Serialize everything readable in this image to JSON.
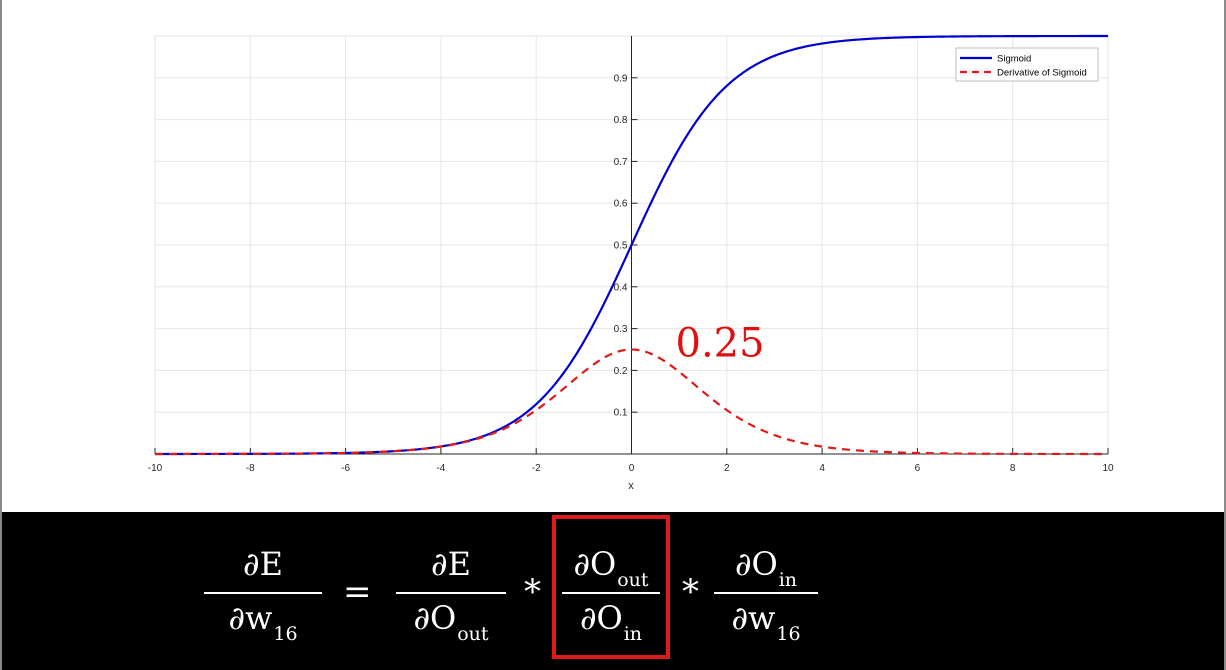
{
  "chart_data": {
    "type": "line",
    "xlabel": "x",
    "ylabel": "",
    "xlim": [
      -10,
      10
    ],
    "ylim": [
      0,
      1
    ],
    "x_ticks": [
      -10,
      -8,
      -6,
      -4,
      -2,
      0,
      2,
      4,
      6,
      8,
      10
    ],
    "y_ticks": [
      0.1,
      0.2,
      0.3,
      0.4,
      0.5,
      0.6,
      0.7,
      0.8,
      0.9
    ],
    "grid": true,
    "axis_location": "origin",
    "legend_position": "top-right",
    "series": [
      {
        "name": "Sigmoid",
        "function": "1/(1+exp(-x))",
        "color": "#0000d0",
        "style": "solid",
        "x": [
          -10,
          -6,
          -4,
          -3,
          -2,
          -1,
          0,
          1,
          2,
          3,
          4,
          6,
          10
        ],
        "values": [
          5e-05,
          0.0025,
          0.018,
          0.047,
          0.119,
          0.269,
          0.5,
          0.731,
          0.881,
          0.953,
          0.982,
          0.9975,
          0.99995
        ]
      },
      {
        "name": "Derivative of Sigmoid",
        "function": "s(x)*(1-s(x))",
        "color": "#e01a1a",
        "style": "dashed",
        "x": [
          -10,
          -6,
          -4,
          -3,
          -2,
          -1,
          0,
          1,
          2,
          3,
          4,
          6,
          10
        ],
        "values": [
          5e-05,
          0.0025,
          0.0177,
          0.045,
          0.105,
          0.197,
          0.25,
          0.197,
          0.105,
          0.045,
          0.0177,
          0.0025,
          5e-05
        ]
      }
    ],
    "annotations": [
      {
        "text": "0.25",
        "x": 0,
        "y": 0.25,
        "color": "#e01010"
      }
    ]
  },
  "formula": {
    "lhs": {
      "num": "∂E",
      "den": "∂w",
      "den_sub": "16"
    },
    "equals": "=",
    "term1": {
      "num": "∂E",
      "den": "∂O",
      "den_sub": "out"
    },
    "times1": "*",
    "term2": {
      "num": "∂O",
      "num_sub": "out",
      "den": "∂O",
      "den_sub": "in",
      "highlight_color": "#e01a1a"
    },
    "times2": "*",
    "term3": {
      "num": "∂O",
      "num_sub": "in",
      "den": "∂w",
      "den_sub": "16"
    }
  }
}
